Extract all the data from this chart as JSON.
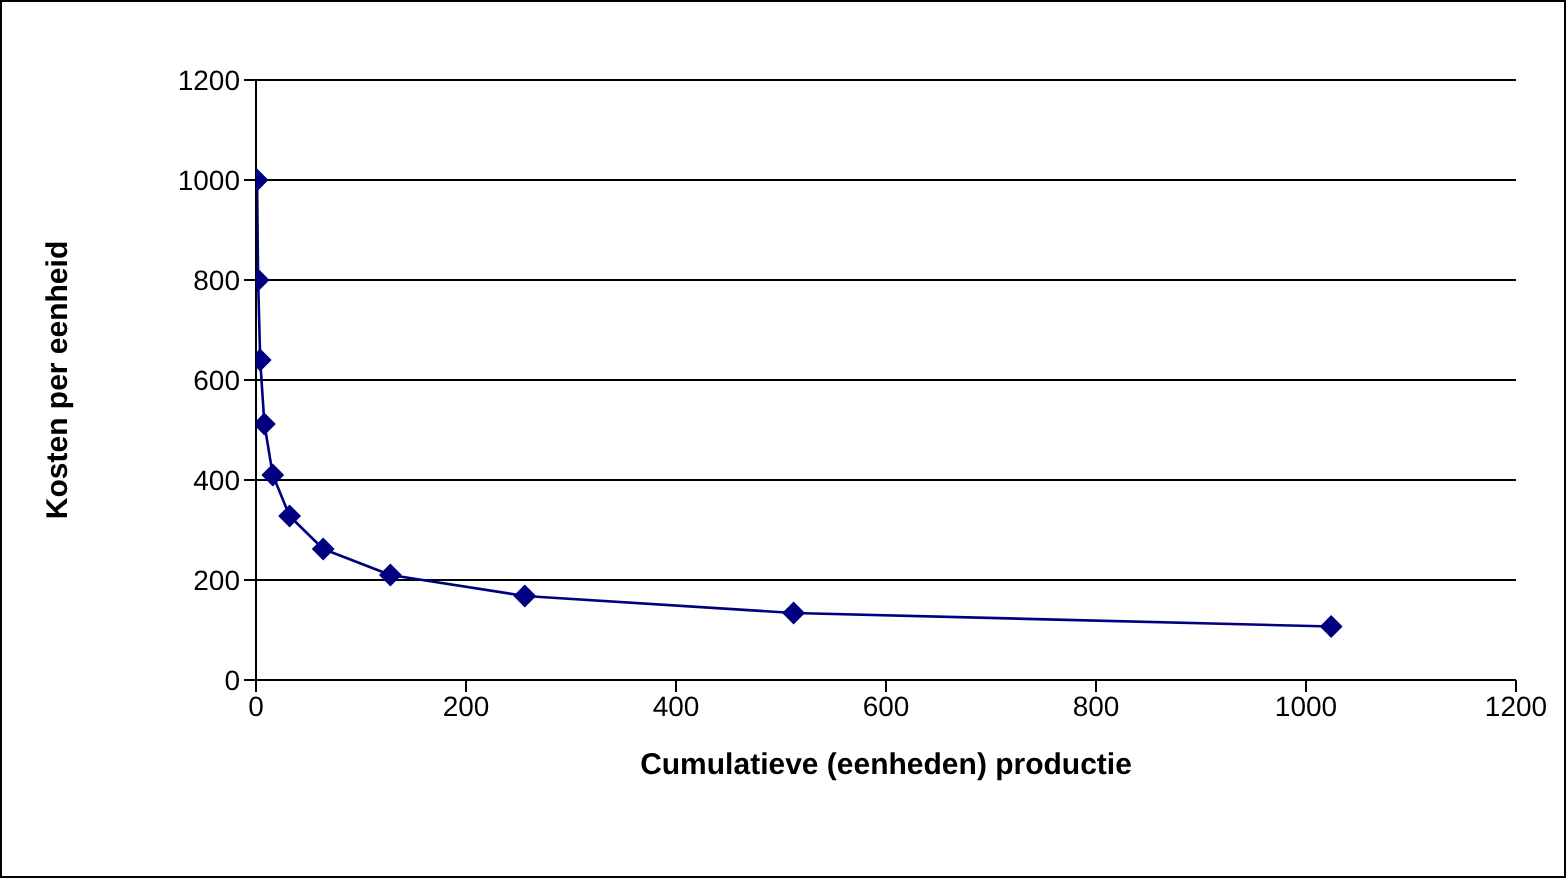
{
  "chart_data": {
    "type": "line",
    "xlabel": "Cumulatieve (eenheden) productie",
    "ylabel": "Kosten per eenheid",
    "x": [
      1,
      2,
      4,
      8,
      16,
      32,
      64,
      128,
      256,
      512,
      1024
    ],
    "series": [
      {
        "color": "#000080",
        "values": [
          1000,
          800,
          640,
          512,
          410,
          328,
          262,
          210,
          168,
          134,
          107
        ]
      }
    ],
    "xlim": [
      0,
      1200
    ],
    "xticks": [
      0,
      200,
      400,
      600,
      800,
      1000,
      1200
    ],
    "ylim": [
      0,
      1200
    ],
    "yticks": [
      0,
      200,
      400,
      600,
      800,
      1000,
      1200
    ],
    "grid": "y",
    "marker": "diamond",
    "line_style": "solid",
    "legend": false
  }
}
